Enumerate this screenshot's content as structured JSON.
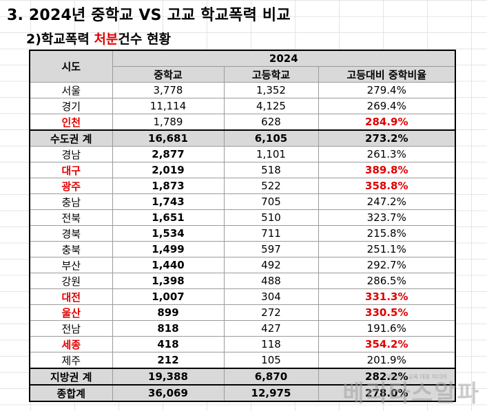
{
  "title": "3. 2024년 중학교 VS 고교 학교폭력 비교",
  "subtitle": {
    "prefix": "2)학교폭력 ",
    "highlight": "처분",
    "suffix": "건수 현황"
  },
  "table": {
    "header_region": "시도",
    "header_year": "2024",
    "columns": [
      "중학교",
      "고등학교",
      "고등대비 중학비율"
    ],
    "rows": [
      {
        "region": "서울",
        "middle": "3,778",
        "high": "1,352",
        "ratio": "279.4%",
        "red": false,
        "middle_bold": false,
        "total": false
      },
      {
        "region": "경기",
        "middle": "11,114",
        "high": "4,125",
        "ratio": "269.4%",
        "red": false,
        "middle_bold": false,
        "total": false
      },
      {
        "region": "인천",
        "middle": "1,789",
        "high": "628",
        "ratio": "284.9%",
        "red": true,
        "middle_bold": false,
        "total": false
      },
      {
        "region": "수도권 계",
        "middle": "16,681",
        "high": "6,105",
        "ratio": "273.2%",
        "red": false,
        "middle_bold": true,
        "total": true
      },
      {
        "region": "경남",
        "middle": "2,877",
        "high": "1,101",
        "ratio": "261.3%",
        "red": false,
        "middle_bold": true,
        "total": false
      },
      {
        "region": "대구",
        "middle": "2,019",
        "high": "518",
        "ratio": "389.8%",
        "red": true,
        "middle_bold": true,
        "total": false
      },
      {
        "region": "광주",
        "middle": "1,873",
        "high": "522",
        "ratio": "358.8%",
        "red": true,
        "middle_bold": true,
        "total": false
      },
      {
        "region": "충남",
        "middle": "1,743",
        "high": "705",
        "ratio": "247.2%",
        "red": false,
        "middle_bold": true,
        "total": false
      },
      {
        "region": "전북",
        "middle": "1,651",
        "high": "510",
        "ratio": "323.7%",
        "red": false,
        "middle_bold": true,
        "total": false
      },
      {
        "region": "경북",
        "middle": "1,534",
        "high": "711",
        "ratio": "215.8%",
        "red": false,
        "middle_bold": true,
        "total": false
      },
      {
        "region": "충북",
        "middle": "1,499",
        "high": "597",
        "ratio": "251.1%",
        "red": false,
        "middle_bold": true,
        "total": false
      },
      {
        "region": "부산",
        "middle": "1,440",
        "high": "492",
        "ratio": "292.7%",
        "red": false,
        "middle_bold": true,
        "total": false
      },
      {
        "region": "강원",
        "middle": "1,398",
        "high": "488",
        "ratio": "286.5%",
        "red": false,
        "middle_bold": true,
        "total": false
      },
      {
        "region": "대전",
        "middle": "1,007",
        "high": "304",
        "ratio": "331.3%",
        "red": true,
        "middle_bold": true,
        "total": false
      },
      {
        "region": "울산",
        "middle": "899",
        "high": "272",
        "ratio": "330.5%",
        "red": true,
        "middle_bold": true,
        "total": false
      },
      {
        "region": "전남",
        "middle": "818",
        "high": "427",
        "ratio": "191.6%",
        "red": false,
        "middle_bold": true,
        "total": false
      },
      {
        "region": "세종",
        "middle": "418",
        "high": "118",
        "ratio": "354.2%",
        "red": true,
        "middle_bold": true,
        "total": false
      },
      {
        "region": "제주",
        "middle": "212",
        "high": "105",
        "ratio": "201.9%",
        "red": false,
        "middle_bold": true,
        "total": false
      },
      {
        "region": "지방권 계",
        "middle": "19,388",
        "high": "6,870",
        "ratio": "282.2%",
        "red": false,
        "middle_bold": true,
        "total": true
      },
      {
        "region": "종합계",
        "middle": "36,069",
        "high": "12,975",
        "ratio": "278.0%",
        "red": false,
        "middle_bold": true,
        "total": true
      }
    ]
  },
  "watermark": "베리타스알파",
  "watermark_small": "대한민국 교육 대표 미디어",
  "colors": {
    "accent_red": "#e00000",
    "header_gray": "#d9d9d9"
  }
}
